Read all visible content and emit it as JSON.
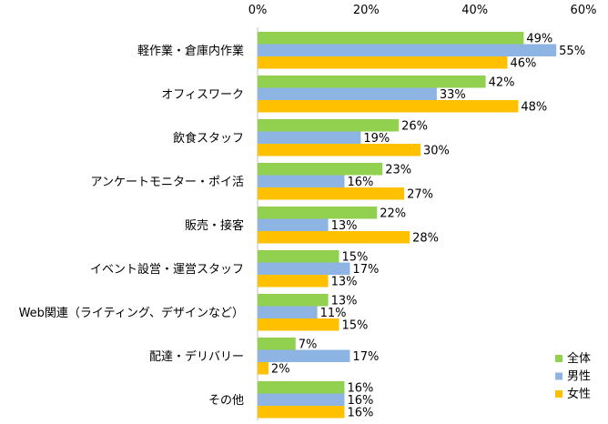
{
  "chart_data": {
    "type": "bar",
    "orientation": "horizontal",
    "categories": [
      "軽作業・倉庫内作業",
      "オフィスワーク",
      "飲食スタッフ",
      "アンケートモニター・ポイ活",
      "販売・接客",
      "イベント設営・運営スタッフ",
      "Web関連（ライティング、デザインなど）",
      "配達・デリバリー",
      "その他"
    ],
    "series": [
      {
        "name": "全体",
        "color": "#92D050",
        "values": [
          49,
          42,
          26,
          23,
          22,
          15,
          13,
          7,
          16
        ]
      },
      {
        "name": "男性",
        "color": "#8EB4E3",
        "values": [
          55,
          33,
          19,
          16,
          13,
          17,
          11,
          17,
          16
        ]
      },
      {
        "name": "女性",
        "color": "#FFC000",
        "values": [
          46,
          48,
          30,
          27,
          28,
          13,
          15,
          2,
          16
        ]
      }
    ],
    "xlim": [
      0,
      60
    ],
    "xticks": [
      "0%",
      "20%",
      "40%",
      "60%"
    ],
    "value_suffix": "%",
    "legend_position": "bottom-right",
    "axis_position": "top",
    "grid": false
  }
}
